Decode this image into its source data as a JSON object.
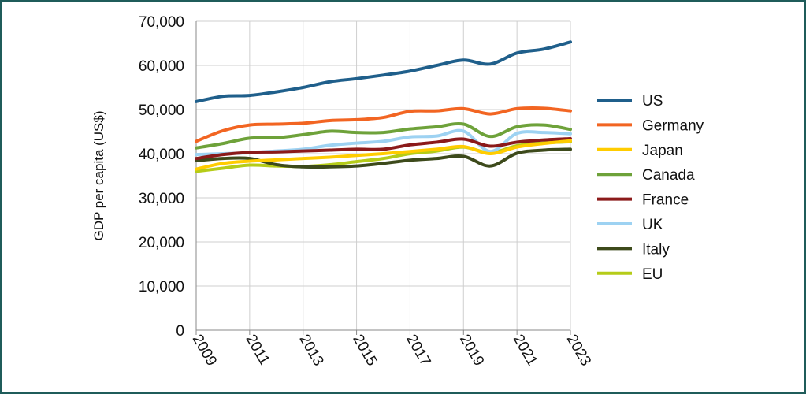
{
  "chart_data": {
    "type": "line",
    "title": "",
    "xlabel": "",
    "ylabel": "GDP per capita (US$)",
    "x": [
      2009,
      2010,
      2011,
      2012,
      2013,
      2014,
      2015,
      2016,
      2017,
      2018,
      2019,
      2020,
      2021,
      2022,
      2023
    ],
    "x_tick_labels": [
      "2009",
      "2011",
      "2013",
      "2015",
      "2017",
      "2019",
      "2021",
      "2023"
    ],
    "y_tick_labels": [
      "0",
      "10,000",
      "20,000",
      "30,000",
      "40,000",
      "50,000",
      "60,000",
      "70,000"
    ],
    "ylim": [
      0,
      70000
    ],
    "grid": "horizontal",
    "legend_position": "right",
    "series": [
      {
        "name": "US",
        "color": "#1f5f8b",
        "values": [
          51800,
          53000,
          53200,
          54000,
          55000,
          56300,
          57000,
          57800,
          58700,
          60000,
          61200,
          60300,
          62800,
          63700,
          65300
        ]
      },
      {
        "name": "Germany",
        "color": "#f26522",
        "values": [
          42800,
          45200,
          46500,
          46700,
          46900,
          47500,
          47700,
          48200,
          49600,
          49700,
          50200,
          49000,
          50200,
          50300,
          49700
        ]
      },
      {
        "name": "Japan",
        "color": "#ffcc00",
        "values": [
          36500,
          37800,
          38300,
          38600,
          38900,
          39200,
          39600,
          40000,
          40500,
          41000,
          41600,
          40000,
          41500,
          42300,
          42900
        ]
      },
      {
        "name": "Canada",
        "color": "#6ea23a",
        "values": [
          41300,
          42300,
          43500,
          43600,
          44300,
          45100,
          44800,
          44800,
          45600,
          46100,
          46700,
          43900,
          46100,
          46500,
          45500
        ]
      },
      {
        "name": "France",
        "color": "#8b1a1a",
        "values": [
          38900,
          39800,
          40300,
          40400,
          40600,
          40800,
          41000,
          41000,
          42000,
          42600,
          43300,
          41700,
          42600,
          43100,
          43400
        ]
      },
      {
        "name": "UK",
        "color": "#9dd2f2",
        "values": [
          39800,
          40000,
          40200,
          40600,
          41000,
          41900,
          42400,
          42800,
          43800,
          44000,
          45100,
          40500,
          44600,
          44800,
          44500
        ]
      },
      {
        "name": "Italy",
        "color": "#3d4a1b",
        "values": [
          38400,
          38900,
          38900,
          37500,
          37000,
          37000,
          37200,
          37800,
          38500,
          38900,
          39400,
          37200,
          40100,
          40800,
          41000
        ]
      },
      {
        "name": "EU",
        "color": "#b5cc18",
        "values": [
          36000,
          36700,
          37400,
          37200,
          37100,
          37500,
          38200,
          38900,
          40000,
          40600,
          41500,
          40200,
          41800,
          42400,
          42700
        ]
      }
    ]
  }
}
